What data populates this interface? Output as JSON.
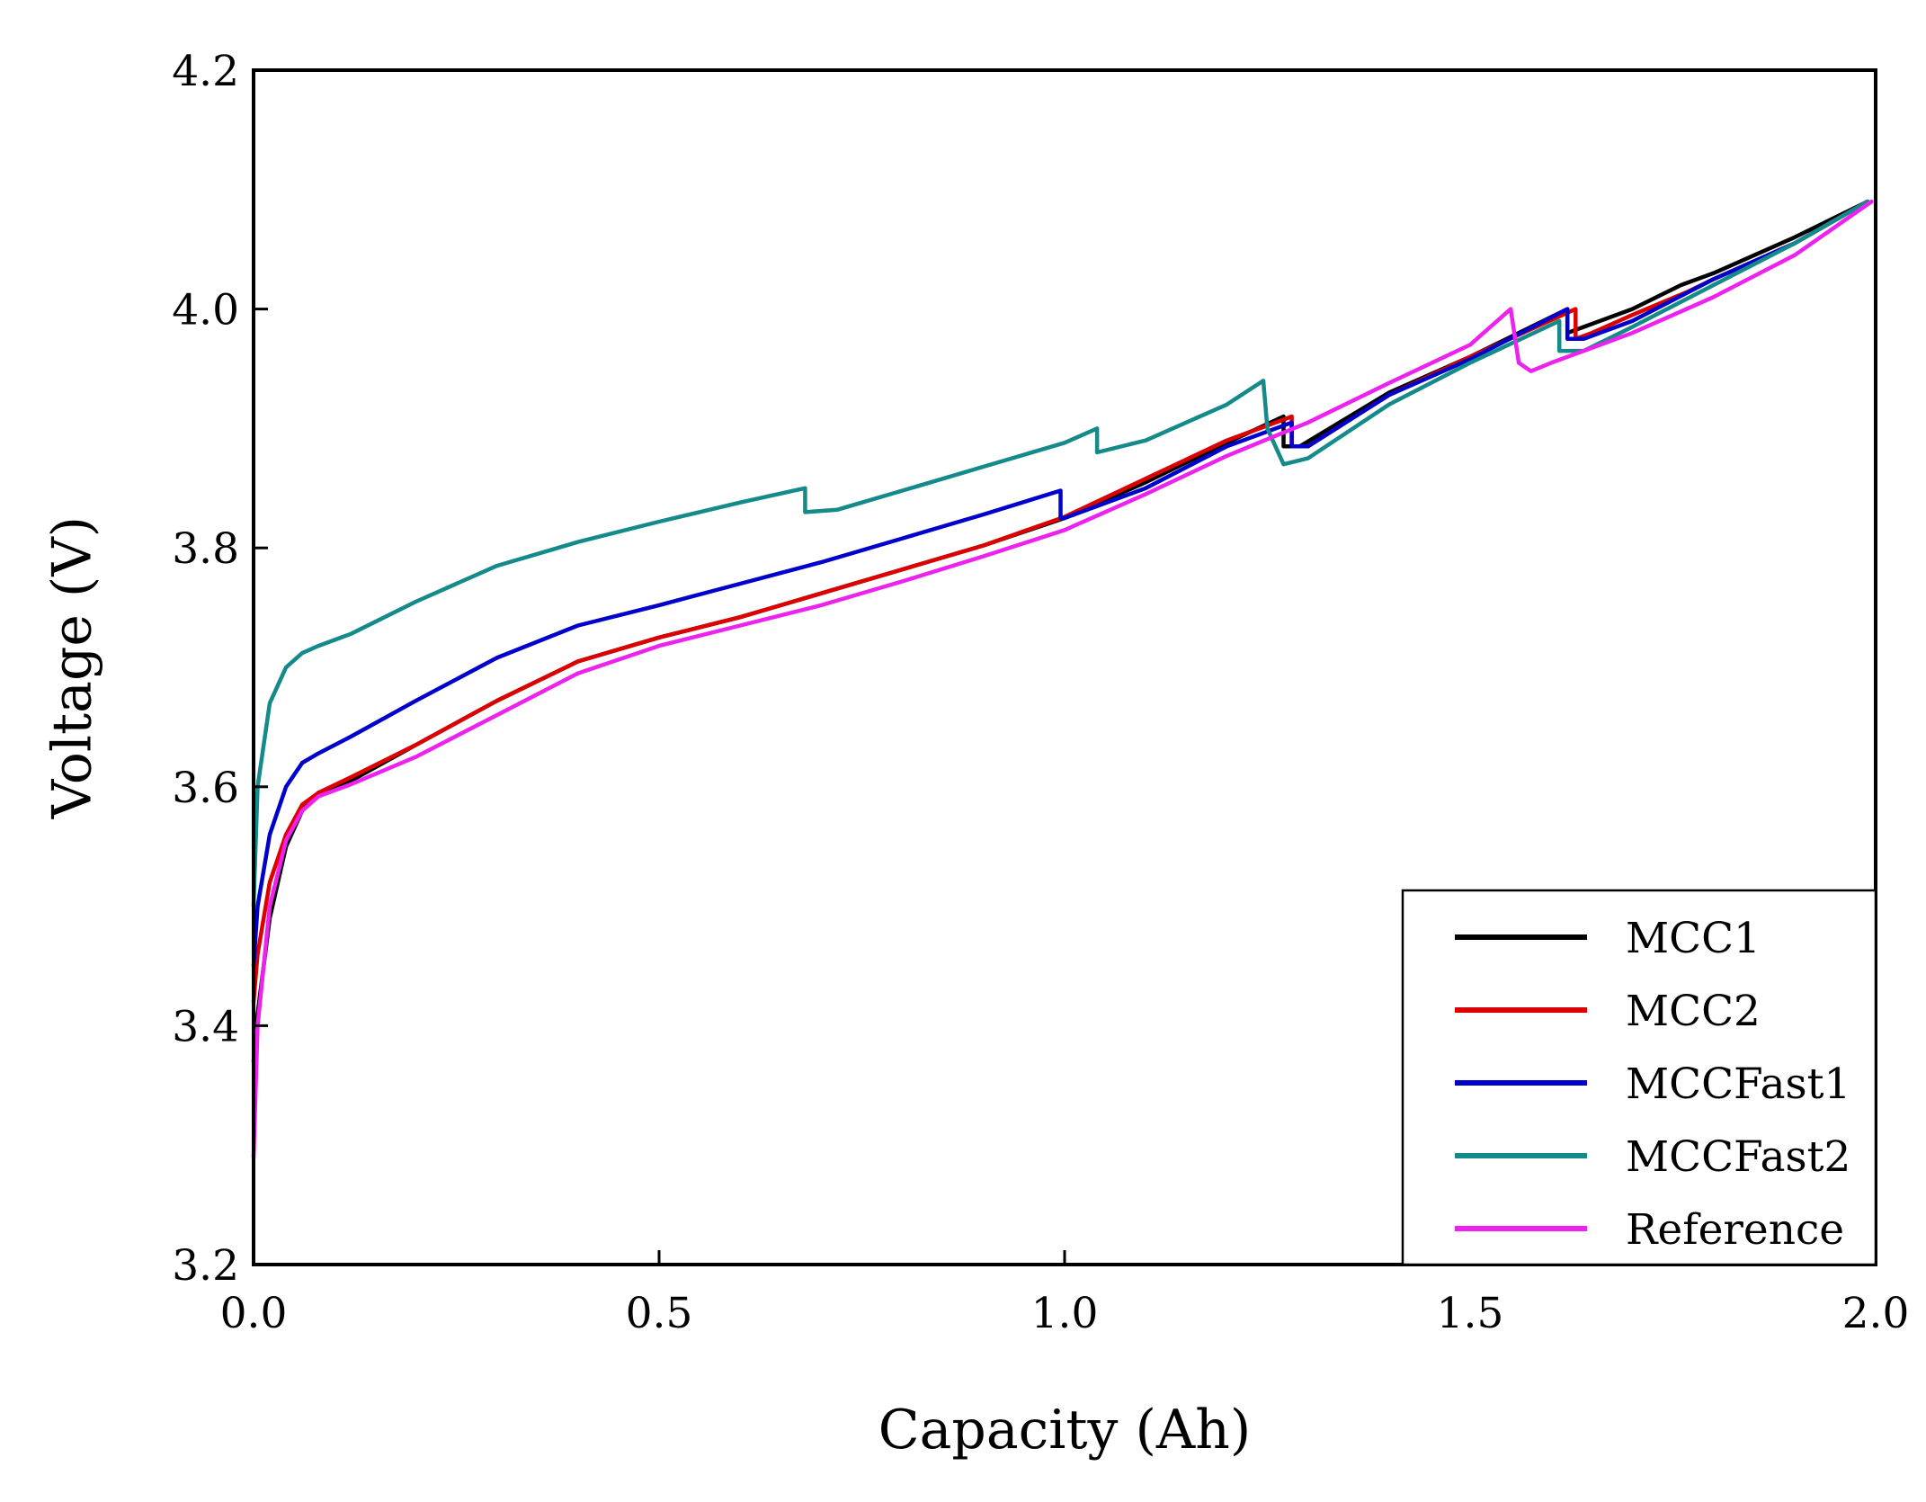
{
  "chart_data": {
    "type": "line",
    "title": "",
    "xlabel": "Capacity (Ah)",
    "ylabel": "Voltage (V)",
    "xlim": [
      0.0,
      2.0
    ],
    "ylim": [
      3.2,
      4.2
    ],
    "x_ticks": [
      0.0,
      0.5,
      1.0,
      1.5,
      2.0
    ],
    "x_tick_labels": [
      "0.0",
      "0.5",
      "1.0",
      "1.5",
      "2.0"
    ],
    "y_ticks": [
      3.2,
      3.4,
      3.6,
      3.8,
      4.0,
      4.2
    ],
    "y_tick_labels": [
      "3.2",
      "3.4",
      "3.6",
      "3.8",
      "4.0",
      "4.2"
    ],
    "grid": false,
    "legend_position": "bottom-right",
    "series": [
      {
        "name": "MCC1",
        "color": "#000000",
        "x": [
          0.0,
          0.005,
          0.02,
          0.04,
          0.06,
          0.08,
          0.12,
          0.2,
          0.3,
          0.4,
          0.5,
          0.6,
          0.7,
          0.8,
          0.9,
          1.0,
          1.1,
          1.2,
          1.27,
          1.27,
          1.29,
          1.4,
          1.5,
          1.62,
          1.62,
          1.64,
          1.7,
          1.76,
          1.8,
          1.9,
          1.99
        ],
        "y": [
          3.37,
          3.41,
          3.49,
          3.55,
          3.58,
          3.595,
          3.605,
          3.635,
          3.672,
          3.705,
          3.725,
          3.742,
          3.762,
          3.782,
          3.802,
          3.825,
          3.855,
          3.888,
          3.91,
          3.885,
          3.885,
          3.93,
          3.96,
          4.0,
          3.98,
          3.985,
          4.0,
          4.02,
          4.03,
          4.06,
          4.09
        ]
      },
      {
        "name": "MCC2",
        "color": "#dd0000",
        "x": [
          0.0,
          0.005,
          0.02,
          0.04,
          0.06,
          0.08,
          0.12,
          0.2,
          0.3,
          0.4,
          0.5,
          0.6,
          0.7,
          0.8,
          0.9,
          1.0,
          1.1,
          1.2,
          1.28,
          1.28,
          1.3,
          1.4,
          1.5,
          1.63,
          1.63,
          1.65,
          1.7,
          1.77,
          1.8,
          1.9,
          1.99
        ],
        "y": [
          3.42,
          3.46,
          3.52,
          3.56,
          3.585,
          3.595,
          3.608,
          3.635,
          3.672,
          3.705,
          3.725,
          3.742,
          3.762,
          3.782,
          3.802,
          3.826,
          3.858,
          3.89,
          3.91,
          3.885,
          3.885,
          3.928,
          3.96,
          4.0,
          3.975,
          3.98,
          3.995,
          4.015,
          4.025,
          4.055,
          4.09
        ]
      },
      {
        "name": "MCCFast1",
        "color": "#0000cc",
        "x": [
          0.0,
          0.005,
          0.02,
          0.04,
          0.06,
          0.08,
          0.12,
          0.2,
          0.3,
          0.4,
          0.5,
          0.6,
          0.7,
          0.8,
          0.9,
          0.995,
          0.995,
          1.0,
          1.1,
          1.2,
          1.28,
          1.28,
          1.3,
          1.4,
          1.5,
          1.62,
          1.62,
          1.64,
          1.7,
          1.8,
          1.9,
          1.99
        ],
        "y": [
          3.45,
          3.5,
          3.56,
          3.6,
          3.62,
          3.628,
          3.642,
          3.672,
          3.708,
          3.735,
          3.752,
          3.77,
          3.788,
          3.808,
          3.828,
          3.848,
          3.825,
          3.825,
          3.85,
          3.885,
          3.905,
          3.885,
          3.885,
          3.928,
          3.958,
          4.0,
          3.975,
          3.975,
          3.99,
          4.025,
          4.055,
          4.09
        ]
      },
      {
        "name": "MCCFast2",
        "color": "#148a8a",
        "x": [
          0.0,
          0.005,
          0.02,
          0.04,
          0.06,
          0.08,
          0.12,
          0.2,
          0.3,
          0.4,
          0.5,
          0.6,
          0.68,
          0.68,
          0.72,
          0.8,
          0.9,
          1.0,
          1.04,
          1.04,
          1.1,
          1.2,
          1.245,
          1.25,
          1.27,
          1.3,
          1.4,
          1.5,
          1.61,
          1.61,
          1.64,
          1.7,
          1.8,
          1.9,
          1.99
        ],
        "y": [
          3.5,
          3.6,
          3.67,
          3.7,
          3.712,
          3.718,
          3.728,
          3.755,
          3.785,
          3.805,
          3.822,
          3.838,
          3.85,
          3.83,
          3.832,
          3.848,
          3.868,
          3.888,
          3.9,
          3.88,
          3.89,
          3.92,
          3.94,
          3.9,
          3.87,
          3.875,
          3.92,
          3.955,
          3.99,
          3.965,
          3.965,
          3.985,
          4.02,
          4.055,
          4.09
        ]
      },
      {
        "name": "Reference",
        "color": "#ee22ee",
        "x": [
          0.0,
          0.005,
          0.02,
          0.04,
          0.06,
          0.08,
          0.12,
          0.2,
          0.3,
          0.4,
          0.5,
          0.6,
          0.7,
          0.8,
          0.9,
          1.0,
          1.1,
          1.2,
          1.3,
          1.4,
          1.5,
          1.55,
          1.56,
          1.575,
          1.6,
          1.7,
          1.8,
          1.9,
          1.995
        ],
        "y": [
          3.29,
          3.4,
          3.5,
          3.555,
          3.58,
          3.592,
          3.602,
          3.625,
          3.66,
          3.695,
          3.718,
          3.735,
          3.752,
          3.772,
          3.793,
          3.815,
          3.845,
          3.877,
          3.905,
          3.938,
          3.97,
          4.0,
          3.955,
          3.948,
          3.955,
          3.98,
          4.01,
          4.045,
          4.09
        ]
      }
    ]
  }
}
